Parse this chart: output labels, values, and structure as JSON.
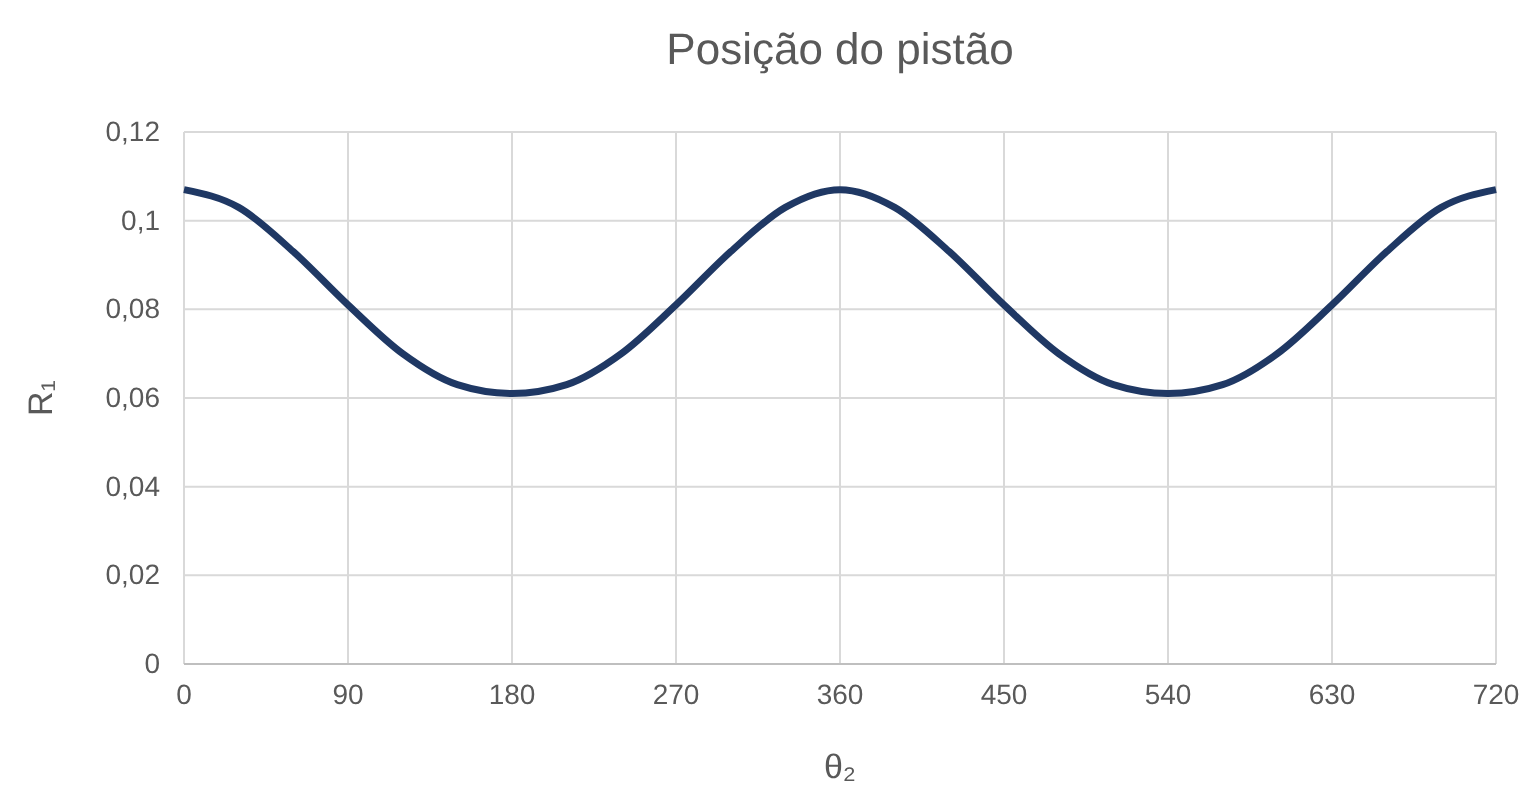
{
  "chart_data": {
    "type": "line",
    "title": "Posição do pistão",
    "xlabel": "θ₂",
    "ylabel": "R₁",
    "x": [
      0,
      30,
      60,
      90,
      120,
      150,
      180,
      210,
      240,
      270,
      300,
      330,
      360,
      390,
      420,
      450,
      480,
      510,
      540,
      570,
      600,
      630,
      660,
      690,
      720
    ],
    "series": [
      {
        "color": "#1f3864",
        "values": [
          0.107,
          0.103,
          0.093,
          0.081,
          0.07,
          0.063,
          0.061,
          0.063,
          0.07,
          0.081,
          0.093,
          0.103,
          0.107,
          0.103,
          0.093,
          0.081,
          0.07,
          0.063,
          0.061,
          0.063,
          0.07,
          0.081,
          0.093,
          0.103,
          0.107
        ]
      }
    ],
    "xlim": [
      0,
      720
    ],
    "xticks": [
      0,
      90,
      180,
      270,
      360,
      450,
      540,
      630,
      720
    ],
    "ylim": [
      0,
      0.12
    ],
    "yticks": [
      {
        "value": 0,
        "label": "0"
      },
      {
        "value": 0.02,
        "label": "0,02"
      },
      {
        "value": 0.04,
        "label": "0,04"
      },
      {
        "value": 0.06,
        "label": "0,06"
      },
      {
        "value": 0.08,
        "label": "0,08"
      },
      {
        "value": 0.1,
        "label": "0,1"
      },
      {
        "value": 0.12,
        "label": "0,12"
      }
    ],
    "grid": true,
    "marker": "none",
    "line_style": "solid",
    "legend": false
  }
}
